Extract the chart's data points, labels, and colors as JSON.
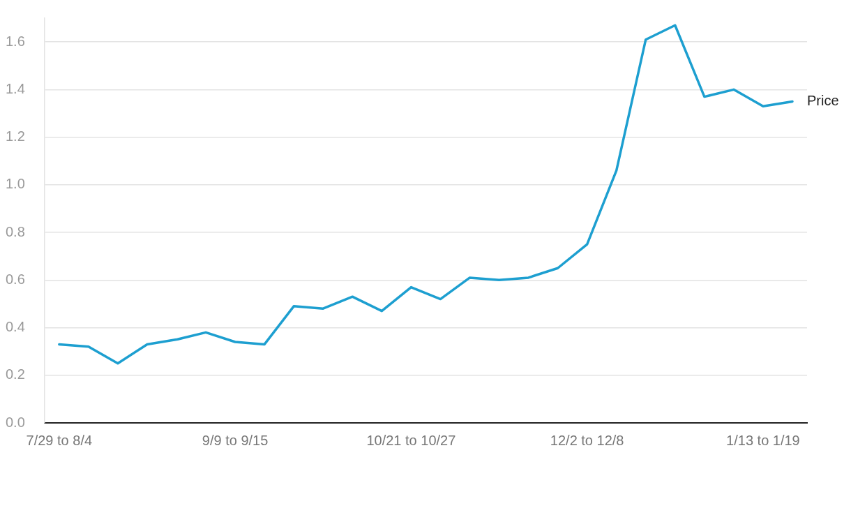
{
  "chart_data": {
    "type": "line",
    "categories": [
      "7/29 to 8/4",
      null,
      null,
      null,
      null,
      null,
      "9/9 to 9/15",
      null,
      null,
      null,
      null,
      null,
      "10/21 to 10/27",
      null,
      null,
      null,
      null,
      null,
      "12/2 to 12/8",
      null,
      null,
      null,
      null,
      null,
      "1/13 to 1/19",
      null
    ],
    "series": [
      {
        "name": "Price",
        "color": "#1d9fd0",
        "values": [
          0.33,
          0.32,
          0.25,
          0.33,
          0.35,
          0.38,
          0.34,
          0.33,
          0.49,
          0.48,
          0.53,
          0.47,
          0.57,
          0.52,
          0.61,
          0.6,
          0.61,
          0.65,
          0.75,
          1.06,
          1.61,
          1.67,
          1.37,
          1.4,
          1.33,
          1.35
        ]
      }
    ],
    "yticks": [
      {
        "value": 0,
        "label": "0.0"
      },
      {
        "value": 0.2,
        "label": "0.2"
      },
      {
        "value": 0.4,
        "label": "0.4"
      },
      {
        "value": 0.6,
        "label": "0.6"
      },
      {
        "value": 0.8,
        "label": "0.8"
      },
      {
        "value": 1,
        "label": "1.0"
      },
      {
        "value": 1.2,
        "label": "1.2"
      },
      {
        "value": 1.4,
        "label": "1.4"
      },
      {
        "value": 1.6,
        "label": "1.6"
      }
    ],
    "ylim": [
      0,
      1.7
    ],
    "grid": "y",
    "legend": false,
    "marker": "none",
    "line_style": "solid"
  }
}
